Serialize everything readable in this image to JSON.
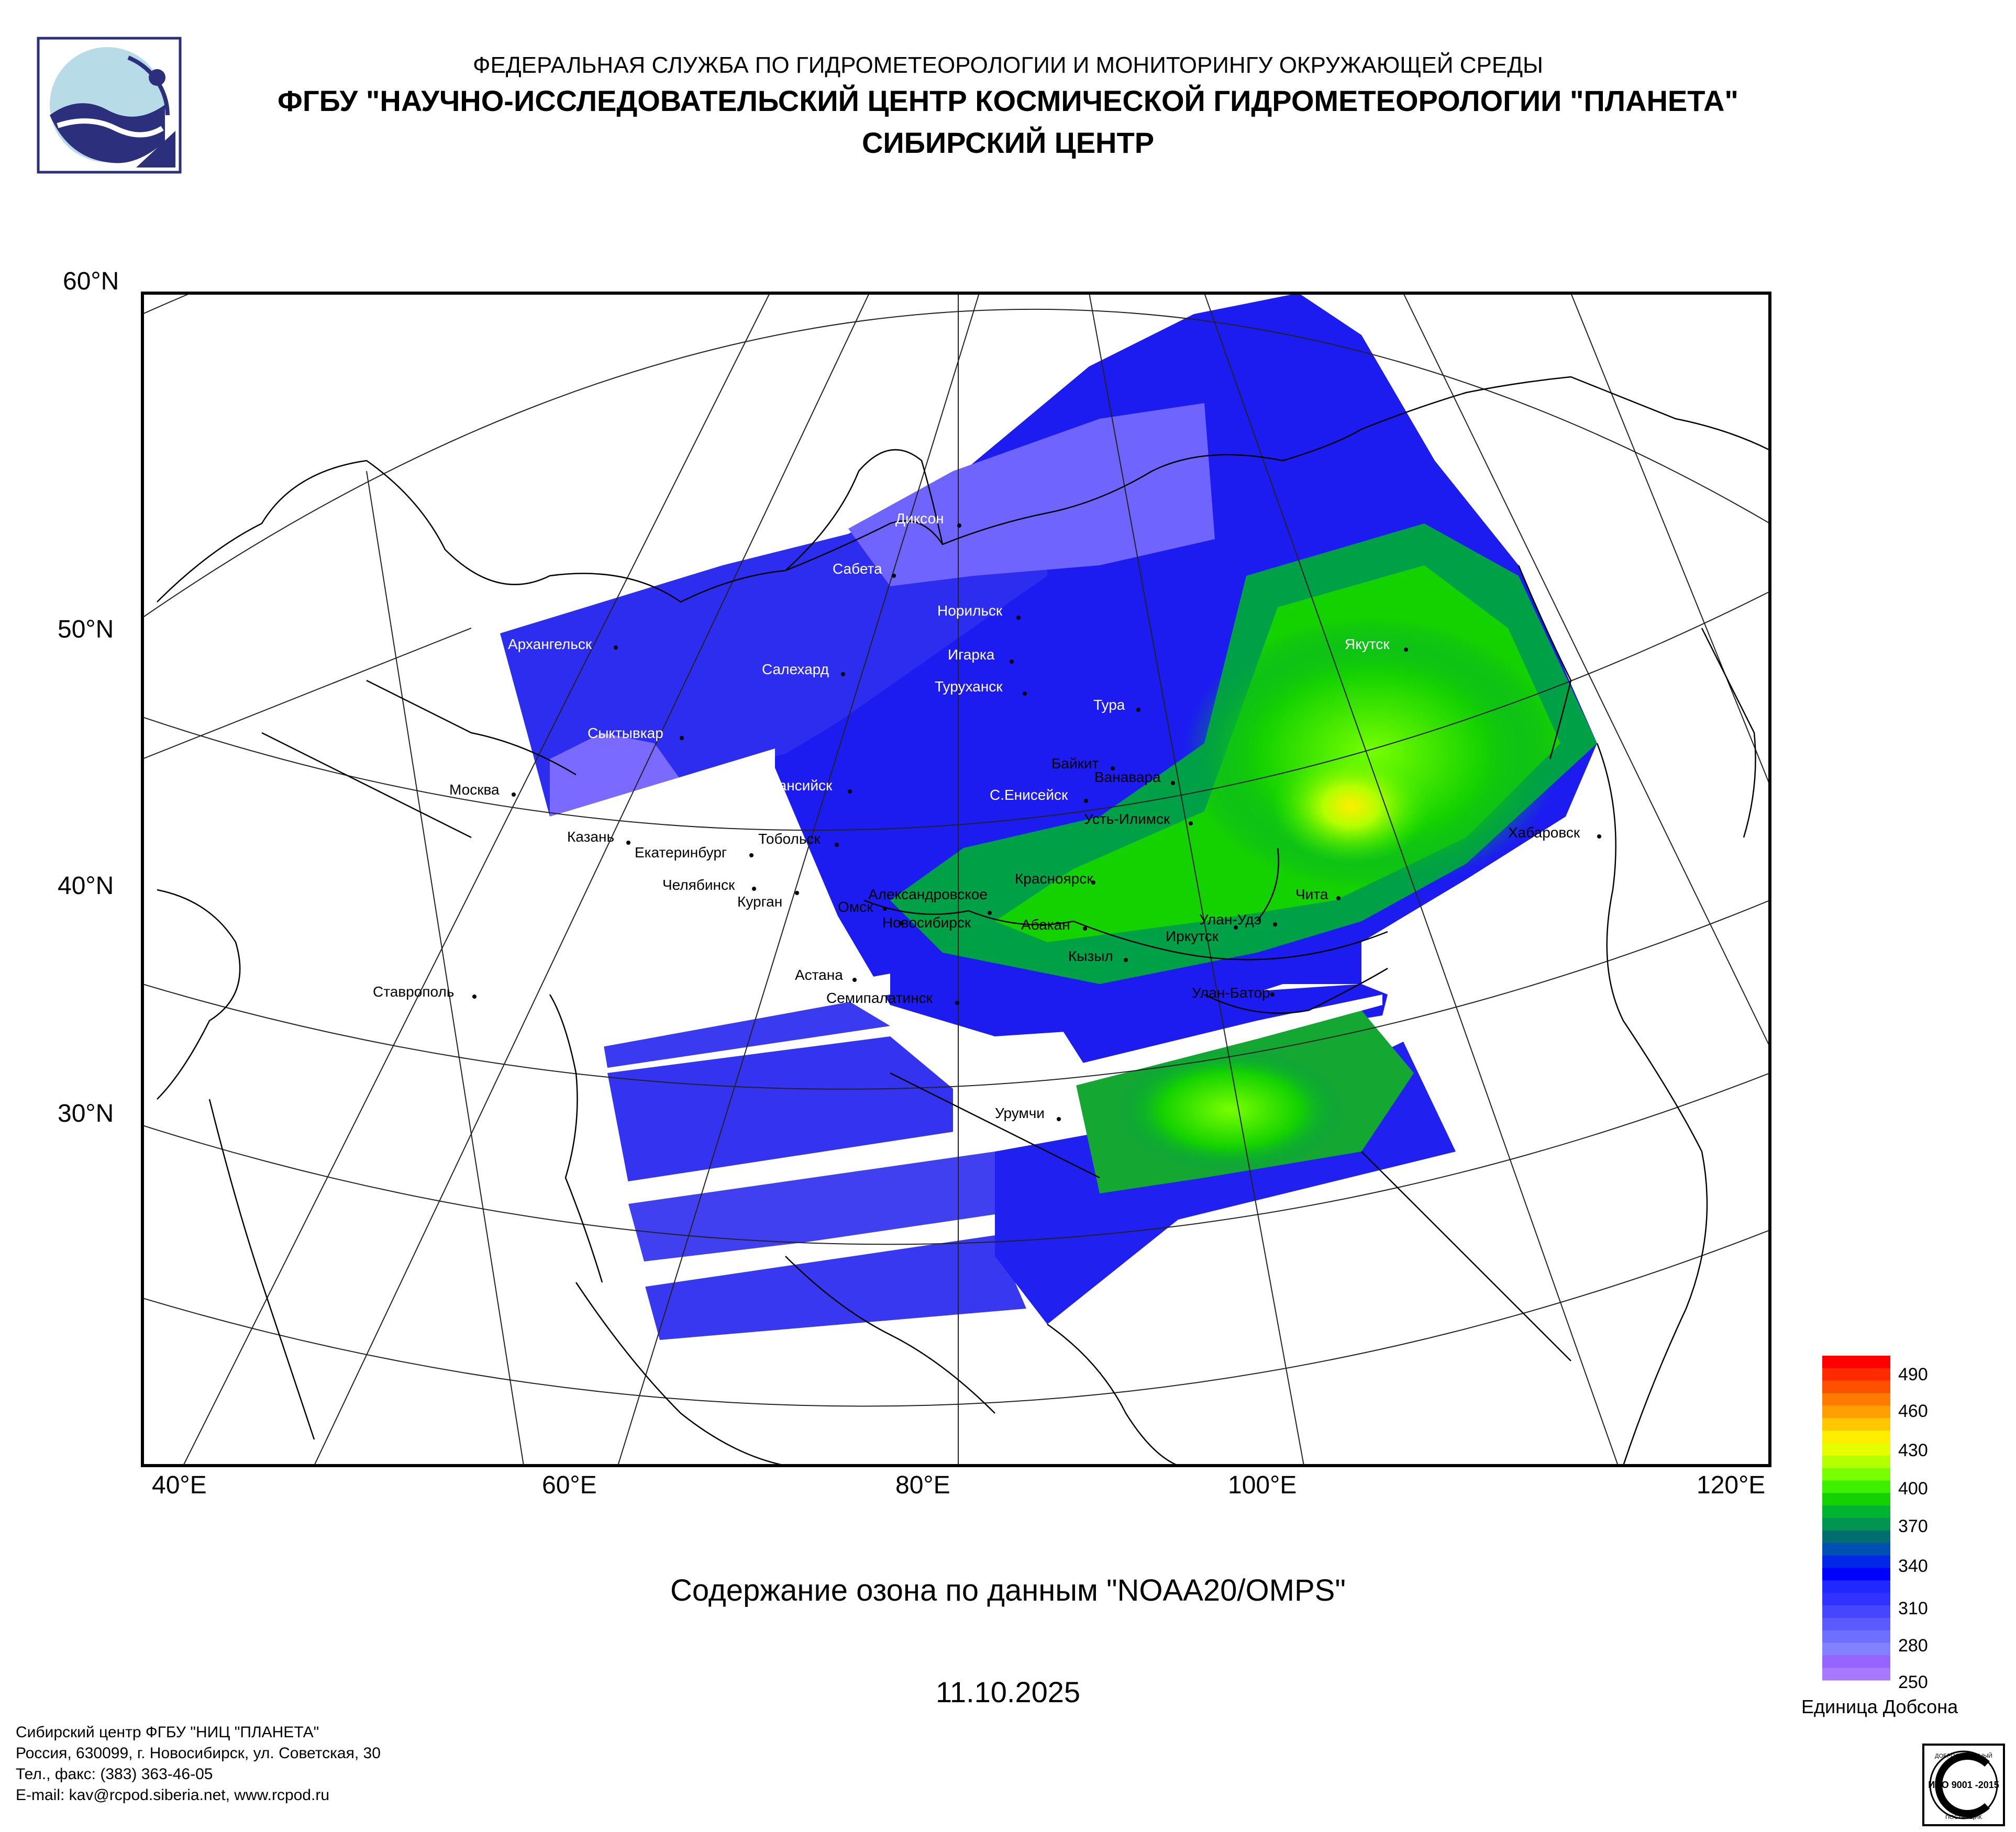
{
  "header": {
    "line1": "ФЕДЕРАЛЬНАЯ СЛУЖБА ПО ГИДРОМЕТЕОРОЛОГИИ И МОНИТОРИНГУ ОКРУЖАЮЩЕЙ СРЕДЫ",
    "line2": "ФГБУ \"НАУЧНО-ИССЛЕДОВАТЕЛЬСКИЙ ЦЕНТР КОСМИЧЕСКОЙ ГИДРОМЕТЕОРОЛОГИИ \"ПЛАНЕТА\"",
    "line3": "СИБИРСКИЙ ЦЕНТР"
  },
  "map": {
    "lat_labels": [
      "60°N",
      "50°N",
      "40°N",
      "30°N"
    ],
    "lon_labels": [
      "40°E",
      "60°E",
      "80°E",
      "100°E",
      "120°E"
    ],
    "cities": [
      {
        "name": "Диксон",
        "color": "white"
      },
      {
        "name": "Сабета",
        "color": "white"
      },
      {
        "name": "Норильск",
        "color": "white"
      },
      {
        "name": "Игарка",
        "color": "white"
      },
      {
        "name": "Туруханск",
        "color": "white"
      },
      {
        "name": "Архангельск",
        "color": "white"
      },
      {
        "name": "Салехард",
        "color": "white"
      },
      {
        "name": "Сыктывкар",
        "color": "white"
      },
      {
        "name": "Тура",
        "color": "white"
      },
      {
        "name": "Якутск",
        "color": "white"
      },
      {
        "name": "Байкит",
        "color": "black"
      },
      {
        "name": "Ванавара",
        "color": "black"
      },
      {
        "name": "Х-Мансийск",
        "color": "white"
      },
      {
        "name": "С.Енисейск",
        "color": "white"
      },
      {
        "name": "Усть-Илимск",
        "color": "black"
      },
      {
        "name": "Москва",
        "color": "black"
      },
      {
        "name": "Казань",
        "color": "black"
      },
      {
        "name": "Екатеринбург",
        "color": "black"
      },
      {
        "name": "Тобольск",
        "color": "black"
      },
      {
        "name": "Хабаровск",
        "color": "black"
      },
      {
        "name": "Челябинск",
        "color": "black"
      },
      {
        "name": "Курган",
        "color": "black"
      },
      {
        "name": "Александровское",
        "color": "black"
      },
      {
        "name": "Омск",
        "color": "black"
      },
      {
        "name": "Новосибирск",
        "color": "black"
      },
      {
        "name": "Красноярск",
        "color": "black"
      },
      {
        "name": "Абакан",
        "color": "black"
      },
      {
        "name": "Чита",
        "color": "black"
      },
      {
        "name": "Улан-Удэ",
        "color": "black"
      },
      {
        "name": "Иркутск",
        "color": "black"
      },
      {
        "name": "Кызыл",
        "color": "black"
      },
      {
        "name": "Ставрополь",
        "color": "black"
      },
      {
        "name": "Астана",
        "color": "black"
      },
      {
        "name": "Семипалатинск",
        "color": "black"
      },
      {
        "name": "Улан-Батор",
        "color": "black"
      },
      {
        "name": "Урумчи",
        "color": "black"
      }
    ]
  },
  "caption": "Содержание озона по данным \"NOAA20/OMPS\"",
  "date": "11.10.2025",
  "legend": {
    "ticks": [
      "490",
      "460",
      "430",
      "400",
      "370",
      "340",
      "310",
      "280",
      "250"
    ],
    "unit": "Единица Добсона",
    "colors": [
      "#ff0000",
      "#ff2a00",
      "#ff5000",
      "#ff7a00",
      "#ffa000",
      "#ffc800",
      "#ffee00",
      "#e6ff00",
      "#b4ff00",
      "#78ff00",
      "#3cf000",
      "#14d200",
      "#00b432",
      "#009650",
      "#006e6e",
      "#0050b4",
      "#0028e6",
      "#0000ff",
      "#1e28ff",
      "#3232ff",
      "#4646ff",
      "#5a5aff",
      "#6e6eff",
      "#8282ff",
      "#9664ff",
      "#a878ff"
    ]
  },
  "footer": {
    "line1": "Сибирский центр ФГБУ \"НИЦ \"ПЛАНЕТА\"",
    "line2": "Россия, 630099, г. Новосибирск, ул. Советская, 30",
    "line3": "Тел., факс: (383) 363-46-05",
    "line4": "E-mail: kav@rcpod.siberia.net, www.rcpod.ru"
  },
  "badge": {
    "top": "ДОБРОСОВЕСТНЫЙ",
    "mid": "ИСО 9001 -2015",
    "bottom": "ПОСТАВЩИК"
  }
}
